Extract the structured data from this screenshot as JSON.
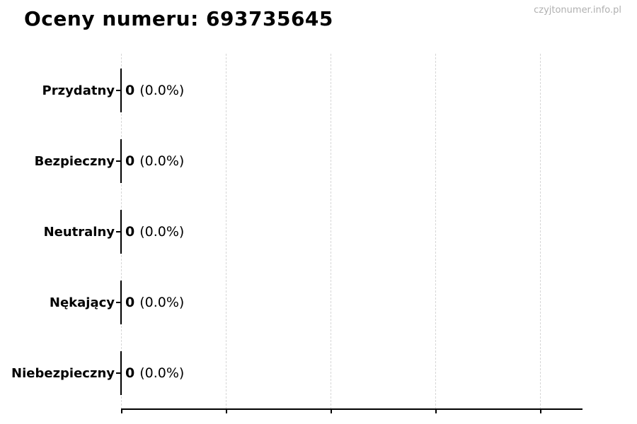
{
  "page": {
    "watermark": "czyjtonumer.info.pl"
  },
  "chart_data": {
    "type": "bar",
    "orientation": "horizontal",
    "title": "Oceny numeru: 693735645",
    "categories": [
      "Przydatny",
      "Bezpieczny",
      "Neutralny",
      "Nękający",
      "Niebezpieczny"
    ],
    "values": [
      0,
      0,
      0,
      0,
      0
    ],
    "percentages": [
      0.0,
      0.0,
      0.0,
      0.0,
      0.0
    ],
    "value_labels": [
      "0 (0.0%)",
      "0 (0.0%)",
      "0 (0.0%)",
      "0 (0.0%)",
      "0 (0.0%)"
    ],
    "xlabel": "",
    "ylabel": "",
    "x_axis": {
      "tick_count": 5,
      "tick_labels": [],
      "labels_visible": false
    },
    "grid": {
      "axis": "x",
      "style": "dashed",
      "enabled": true
    },
    "legend": "none",
    "colors": {
      "bar_edge": "#000000",
      "grid": "#d6d6d6",
      "axis": "#000000",
      "text": "#000000",
      "watermark": "#b0b0b0",
      "background": "#ffffff"
    },
    "rows": [
      {
        "label": "Przydatny",
        "value": "0",
        "percent": "(0.0%)"
      },
      {
        "label": "Bezpieczny",
        "value": "0",
        "percent": "(0.0%)"
      },
      {
        "label": "Neutralny",
        "value": "0",
        "percent": "(0.0%)"
      },
      {
        "label": "Nękający",
        "value": "0",
        "percent": "(0.0%)"
      },
      {
        "label": "Niebezpieczny",
        "value": "0",
        "percent": "(0.0%)"
      }
    ]
  }
}
